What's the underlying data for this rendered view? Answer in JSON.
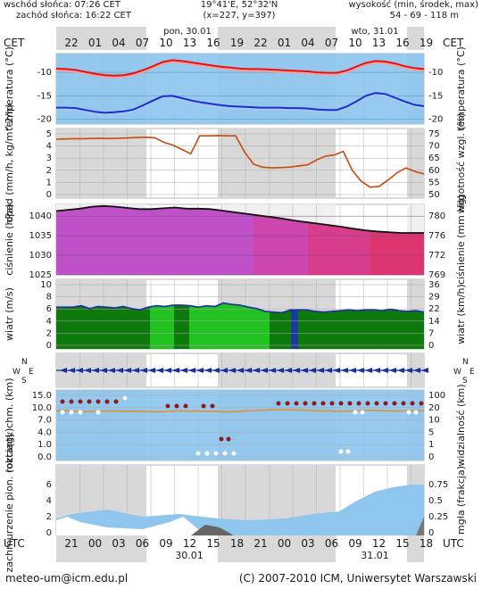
{
  "header": {
    "sunrise": "wschód słońca: 07:26 CET",
    "sunset": "zachód słońca: 16:22 CET",
    "coords": "19°41'E, 52°32'N",
    "grid": "(x=227, y=397)",
    "height_label": "wysokość (min, środek, max)",
    "height_values": "54 - 69 - 118 m"
  },
  "top_axis": {
    "tz_left": "CET",
    "tz_right": "CET",
    "day1": "pon, 30.01",
    "day2": "wto, 31.01",
    "hours": [
      "22",
      "01",
      "04",
      "07",
      "10",
      "13",
      "16",
      "19",
      "22",
      "01",
      "04",
      "07",
      "10",
      "13",
      "16",
      "19"
    ]
  },
  "bottom_axis": {
    "tz_left": "UTC",
    "tz_right": "UTC",
    "hours": [
      "21",
      "00",
      "03",
      "06",
      "09",
      "12",
      "15",
      "18",
      "21",
      "00",
      "03",
      "06",
      "09",
      "12",
      "15",
      "18"
    ],
    "date1": "30.01",
    "date2": "31.01"
  },
  "footer": {
    "email": "meteo-um@icm.edu.pl",
    "copyright": "(C) 2007-2010 ICM, Uniwersytet Warszawski"
  },
  "colors": {
    "sky": "#8ec6ee",
    "night": "#d8d8d8",
    "temp": "#e81010",
    "dew": "#1a2fd0",
    "precip": "#c84a10",
    "pressure_line": "#111111",
    "wind_dark": "#0e7a0e",
    "wind_light": "#22c222",
    "wind_line": "#1a2f9e",
    "vis_line": "#e09030",
    "cloud_base_dot": "#8b1a1a"
  },
  "chart_data": [
    {
      "name": "temperature",
      "type": "line",
      "ylabel_left": "temperatura (°C)",
      "ylabel_right": "temperatura (°C)",
      "yticks": [
        -10,
        -15,
        -20
      ],
      "ylim": [
        -21,
        -6
      ],
      "series": [
        {
          "name": "temperatura",
          "values": [
            -9.2,
            -9.3,
            -9.5,
            -9.9,
            -10.3,
            -10.6,
            -10.7,
            -10.6,
            -10.2,
            -9.5,
            -8.7,
            -7.8,
            -7.4,
            -7.6,
            -7.9,
            -8.2,
            -8.5,
            -8.8,
            -9.0,
            -9.2,
            -9.3,
            -9.3,
            -9.4,
            -9.5,
            -9.6,
            -9.7,
            -9.8,
            -10.0,
            -10.1,
            -10.1,
            -9.6,
            -8.8,
            -8.0,
            -7.6,
            -7.7,
            -8.1,
            -8.7,
            -9.1,
            -9.3
          ]
        },
        {
          "name": "punkt rosy",
          "values": [
            -17.5,
            -17.5,
            -17.6,
            -18.0,
            -18.4,
            -18.6,
            -18.5,
            -18.3,
            -17.9,
            -17.0,
            -16.0,
            -15.1,
            -15.0,
            -15.5,
            -16.0,
            -16.4,
            -16.7,
            -17.0,
            -17.2,
            -17.3,
            -17.4,
            -17.5,
            -17.5,
            -17.5,
            -17.6,
            -17.6,
            -17.7,
            -17.9,
            -18.0,
            -18.0,
            -17.3,
            -16.2,
            -15.0,
            -14.4,
            -14.6,
            -15.4,
            -16.2,
            -16.9,
            -17.2
          ]
        }
      ]
    },
    {
      "name": "precipitation-humidity",
      "type": "line",
      "ylabel_left": "opad (mm/h, kg/m^2/h)",
      "ylabel_right": "wilgotność wzgl. (%)",
      "yticks_left": [
        5,
        4,
        3,
        2,
        1,
        0
      ],
      "yticks_right": [
        75,
        70,
        65,
        60,
        55,
        50
      ],
      "ylim_right": [
        50,
        76
      ],
      "series": [
        {
          "name": "wilgotność wzgl.",
          "values": [
            72.8,
            72.9,
            73.0,
            73.0,
            73.1,
            73.2,
            73.1,
            73.2,
            73.3,
            73.5,
            73.6,
            73.4,
            71.5,
            70.4,
            68.6,
            66.8,
            74.2,
            74.2,
            74.3,
            74.2,
            74.2,
            67.5,
            62.5,
            61.3,
            61.0,
            61.1,
            61.3,
            61.8,
            62.2,
            64.2,
            65.8,
            66.3,
            67.8,
            60.0,
            55.5,
            53.0,
            53.4,
            56.0,
            59.0,
            61.0,
            59.5,
            58.5
          ]
        }
      ]
    },
    {
      "name": "pressure",
      "type": "area",
      "ylabel_left": "ciśnienie (hPa)",
      "ylabel_right": "ciśnienie (mm Hg)",
      "yticks_left": [
        1040,
        1035,
        1030,
        1025
      ],
      "yticks_right": [
        780,
        776,
        772,
        769
      ],
      "ylim": [
        1025,
        1043
      ],
      "values": [
        1041.3,
        1041.6,
        1041.9,
        1042.4,
        1042.6,
        1042.4,
        1042.1,
        1041.8,
        1041.8,
        1042.0,
        1042.2,
        1041.9,
        1041.9,
        1041.8,
        1041.4,
        1041.0,
        1040.6,
        1040.2,
        1039.8,
        1039.4,
        1038.9,
        1038.5,
        1038.1,
        1037.7,
        1037.3,
        1036.8,
        1036.4,
        1036.1,
        1035.9,
        1035.7,
        1035.7,
        1035.7
      ]
    },
    {
      "name": "wind",
      "type": "area",
      "ylabel_left": "wiatr (m/s)",
      "ylabel_right": "wiatr (km/h)",
      "yticks_left": [
        10,
        8,
        6,
        4,
        2,
        0
      ],
      "yticks_right": [
        36,
        29,
        22,
        14,
        7,
        0
      ],
      "ylim": [
        0,
        10
      ],
      "values": [
        6.0,
        6.0,
        6.0,
        6.2,
        5.8,
        6.1,
        6.0,
        5.9,
        6.1,
        5.8,
        5.6,
        6.0,
        6.2,
        6.1,
        6.3,
        6.3,
        6.2,
        6.0,
        6.2,
        6.1,
        6.6,
        6.4,
        6.3,
        6.0,
        5.8,
        5.4,
        5.3,
        5.2,
        5.6,
        5.6,
        5.6,
        5.4,
        5.3,
        5.4,
        5.5,
        5.6,
        5.5,
        5.6,
        5.6,
        5.5,
        5.7,
        5.5,
        5.4,
        5.5,
        5.3
      ]
    },
    {
      "name": "wind-direction",
      "type": "scatter",
      "ylabel_left": "W^N_S E",
      "ylabel_right": "W^N_S E"
    },
    {
      "name": "cloud-base-visibility",
      "type": "line",
      "ylabel_left": "rozciągł. chm. (km)",
      "ylabel_right": "widzialność (km)",
      "yticks_left": [
        "15.0",
        "10.0",
        "7.0",
        "4.0",
        "1.0",
        "0.0"
      ],
      "yticks_right": [
        100,
        20,
        10,
        5,
        1,
        0
      ],
      "series": [
        {
          "name": "widzialność",
          "values": [
            6.8,
            6.9,
            6.6,
            6.4,
            6.5,
            6.6,
            6.8,
            6.7,
            6.6,
            6.6,
            6.5,
            6.4,
            6.4,
            6.6,
            6.9,
            6.7,
            6.8,
            6.6,
            6.6,
            6.3,
            6.4,
            6.6,
            6.9,
            7.0,
            7.2,
            7.4,
            7.4,
            7.3,
            7.2,
            7.0,
            6.8,
            6.8,
            6.6,
            6.7,
            6.8,
            7.0,
            7.1,
            7.0,
            6.8,
            6.8,
            6.9,
            6.9,
            6.8
          ]
        }
      ]
    },
    {
      "name": "cloud-cover-fog",
      "type": "area",
      "ylabel_left": "zachmurzenie pion. (oktanty)",
      "ylabel_right": "mgła (frakcja)",
      "yticks_left": [
        6,
        4,
        2,
        0
      ],
      "yticks_right": [
        "0.75",
        "0.5",
        "0.25",
        "0"
      ],
      "ylim": [
        0,
        8
      ]
    }
  ]
}
